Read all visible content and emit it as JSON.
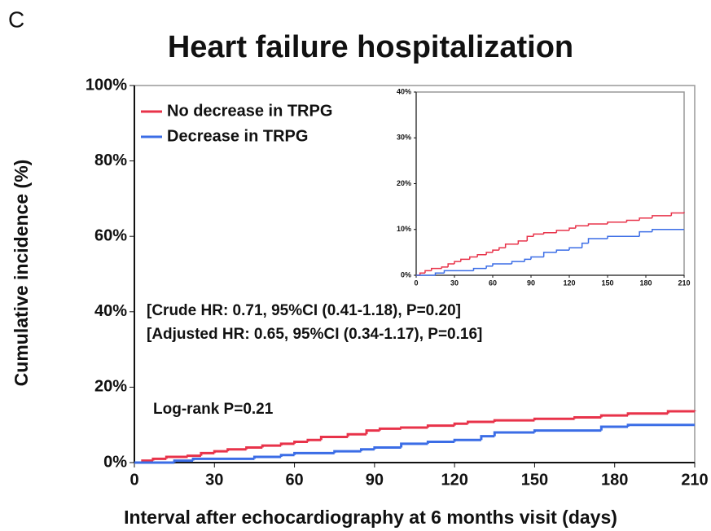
{
  "panel_label": "C",
  "chart_data": [
    {
      "type": "line",
      "step": true,
      "title": "Heart failure hospitalization",
      "x_label": "Interval after echocardiography at 6 months visit (days)",
      "y_label": "Cumulative incidence (%)",
      "annotations": [
        "[Crude HR: 0.71, 95%CI (0.41-1.18), P=0.20]",
        "[Adjusted HR: 0.65, 95%CI (0.34-1.17), P=0.16]",
        "Log-rank P=0.21"
      ],
      "legend": "upper left",
      "xlim": [
        0,
        210
      ],
      "xticks": [
        0,
        30,
        60,
        90,
        120,
        150,
        180,
        210
      ],
      "ylim": [
        0,
        100
      ],
      "yticks": [
        {
          "value": 0,
          "label": "0%"
        },
        {
          "value": 20,
          "label": "20%"
        },
        {
          "value": 40,
          "label": "40%"
        },
        {
          "value": 60,
          "label": "60%"
        },
        {
          "value": 80,
          "label": "80%"
        },
        {
          "value": 100,
          "label": "100%"
        }
      ],
      "series": [
        {
          "name": "No decrease in TRPG",
          "color": "#e8334a",
          "x": [
            0,
            3,
            7,
            12,
            20,
            25,
            30,
            35,
            42,
            48,
            55,
            60,
            65,
            70,
            80,
            87,
            92,
            100,
            110,
            120,
            125,
            135,
            150,
            165,
            175,
            185,
            200,
            210
          ],
          "values": [
            0,
            0.5,
            1,
            1.5,
            1.8,
            2.5,
            3,
            3.5,
            4,
            4.5,
            5,
            5.5,
            6,
            6.8,
            7.5,
            8.5,
            9,
            9.3,
            9.8,
            10.3,
            10.8,
            11.2,
            11.6,
            12,
            12.5,
            13,
            13.6,
            13.8
          ]
        },
        {
          "name": "Decrease in TRPG",
          "color": "#3b6de6",
          "x": [
            0,
            15,
            22,
            45,
            55,
            60,
            75,
            85,
            90,
            100,
            110,
            120,
            130,
            135,
            150,
            175,
            185,
            210
          ],
          "values": [
            0,
            0.5,
            1,
            1.5,
            2,
            2.5,
            3,
            3.5,
            4,
            5,
            5.5,
            6,
            7,
            8,
            8.5,
            9.5,
            10,
            10
          ]
        }
      ]
    },
    {
      "type": "line",
      "step": true,
      "xlim": [
        0,
        210
      ],
      "xticks": [
        0,
        30,
        60,
        90,
        120,
        150,
        180,
        210
      ],
      "ylim": [
        0,
        40
      ],
      "yticks": [
        {
          "value": 0,
          "label": "0%"
        },
        {
          "value": 10,
          "label": "10%"
        },
        {
          "value": 20,
          "label": "20%"
        },
        {
          "value": 30,
          "label": "30%"
        },
        {
          "value": 40,
          "label": "40%"
        }
      ],
      "series": [
        {
          "color": "#e8334a",
          "x": [
            0,
            3,
            7,
            12,
            20,
            25,
            30,
            35,
            42,
            48,
            55,
            60,
            65,
            70,
            80,
            87,
            92,
            100,
            110,
            120,
            125,
            135,
            150,
            165,
            175,
            185,
            200,
            210
          ],
          "values": [
            0,
            0.5,
            1,
            1.5,
            1.8,
            2.5,
            3,
            3.5,
            4,
            4.5,
            5,
            5.5,
            6,
            6.8,
            7.5,
            8.5,
            9,
            9.3,
            9.8,
            10.3,
            10.8,
            11.2,
            11.6,
            12,
            12.5,
            13,
            13.6,
            13.8
          ]
        },
        {
          "color": "#3b6de6",
          "x": [
            0,
            15,
            22,
            45,
            55,
            60,
            75,
            85,
            90,
            100,
            110,
            120,
            130,
            135,
            150,
            175,
            185,
            210
          ],
          "values": [
            0,
            0.5,
            1,
            1.5,
            2,
            2.5,
            3,
            3.5,
            4,
            5,
            5.5,
            6,
            7,
            8,
            8.5,
            9.5,
            10,
            10
          ]
        }
      ]
    }
  ]
}
